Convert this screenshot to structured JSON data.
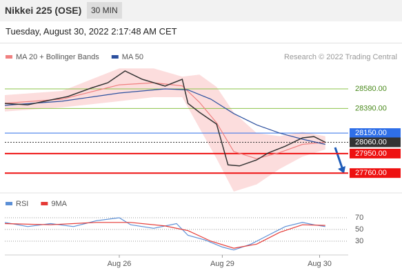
{
  "header": {
    "title": "Nikkei 225 (OSE)",
    "interval": "30 MIN",
    "date": "Tuesday, August 30, 2022 2:17:48 AM CET"
  },
  "chart_data": [
    {
      "type": "line",
      "source": "Research © 2022 Trading Central",
      "xlim": [
        0,
        60
      ],
      "ylim": [
        27580,
        29010
      ],
      "price": {
        "color": "#333333",
        "x": [
          0,
          4,
          8,
          11,
          15,
          18,
          21,
          24,
          28,
          31,
          32,
          34,
          37,
          39,
          41,
          44,
          46,
          49,
          52,
          54,
          56
        ],
        "values": [
          28439,
          28425,
          28472,
          28506,
          28587,
          28640,
          28755,
          28674,
          28607,
          28674,
          28439,
          28352,
          28237,
          27840,
          27830,
          27888,
          27955,
          28022,
          28103,
          28116,
          28060
        ]
      },
      "series": [
        {
          "name": "MA 20 + Bollinger Bands",
          "color": "#f08080",
          "band_color": "#fbd5d5",
          "x": [
            0,
            10,
            20,
            26,
            31,
            34,
            37,
            40,
            44,
            48,
            52,
            56
          ],
          "values": [
            28440,
            28480,
            28620,
            28640,
            28610,
            28450,
            28250,
            27970,
            27900,
            27960,
            28040,
            28060
          ],
          "upper": [
            28520,
            28560,
            28780,
            28780,
            28700,
            28720,
            28600,
            28350,
            28150,
            28120,
            28160,
            28120
          ],
          "lower": [
            28360,
            28400,
            28460,
            28500,
            28500,
            28200,
            27900,
            27580,
            27650,
            27800,
            27920,
            27990
          ]
        },
        {
          "name": "MA 50",
          "color": "#2b4f9e",
          "x": [
            0,
            10,
            20,
            28,
            32,
            36,
            40,
            44,
            48,
            52,
            56
          ],
          "values": [
            28420,
            28460,
            28540,
            28580,
            28570,
            28480,
            28340,
            28230,
            28150,
            28090,
            28040
          ]
        }
      ],
      "levels": [
        {
          "value": 28580,
          "label": "28580.00",
          "color": "#8bc34a",
          "box": false
        },
        {
          "value": 28390,
          "label": "28390.00",
          "color": "#8bc34a",
          "box": false
        },
        {
          "value": 28150,
          "label": "28150.00",
          "color": "#2f6fe8",
          "box": true
        },
        {
          "value": 28060,
          "label": "28060.00",
          "color": "#333333",
          "box": true,
          "dotted": true
        },
        {
          "value": 27950,
          "label": "27950.00",
          "color": "#ee1111",
          "box": true
        },
        {
          "value": 27760,
          "label": "27760.00",
          "color": "#ee1111",
          "box": true
        }
      ]
    },
    {
      "type": "line",
      "xlim": [
        0,
        60
      ],
      "ylim": [
        10,
        90
      ],
      "yticks": [
        70,
        50,
        30
      ],
      "grid": true,
      "xticks": [
        {
          "value": 20,
          "label": "Aug 26"
        },
        {
          "value": 38,
          "label": "Aug 29"
        },
        {
          "value": 55,
          "label": "Aug 30"
        }
      ],
      "series": [
        {
          "name": "RSI",
          "color": "#5b8fd6",
          "x": [
            0,
            4,
            8,
            12,
            16,
            20,
            22,
            26,
            30,
            32,
            35,
            38,
            40,
            43,
            46,
            49,
            52,
            54,
            56
          ],
          "values": [
            62,
            55,
            60,
            55,
            65,
            70,
            58,
            52,
            60,
            40,
            32,
            20,
            15,
            25,
            40,
            55,
            62,
            58,
            55
          ]
        },
        {
          "name": "9MA",
          "color": "#e53935",
          "x": [
            0,
            8,
            16,
            22,
            28,
            32,
            36,
            40,
            44,
            48,
            52,
            56
          ],
          "values": [
            60,
            58,
            62,
            62,
            56,
            48,
            30,
            18,
            25,
            45,
            58,
            57
          ]
        }
      ]
    }
  ]
}
